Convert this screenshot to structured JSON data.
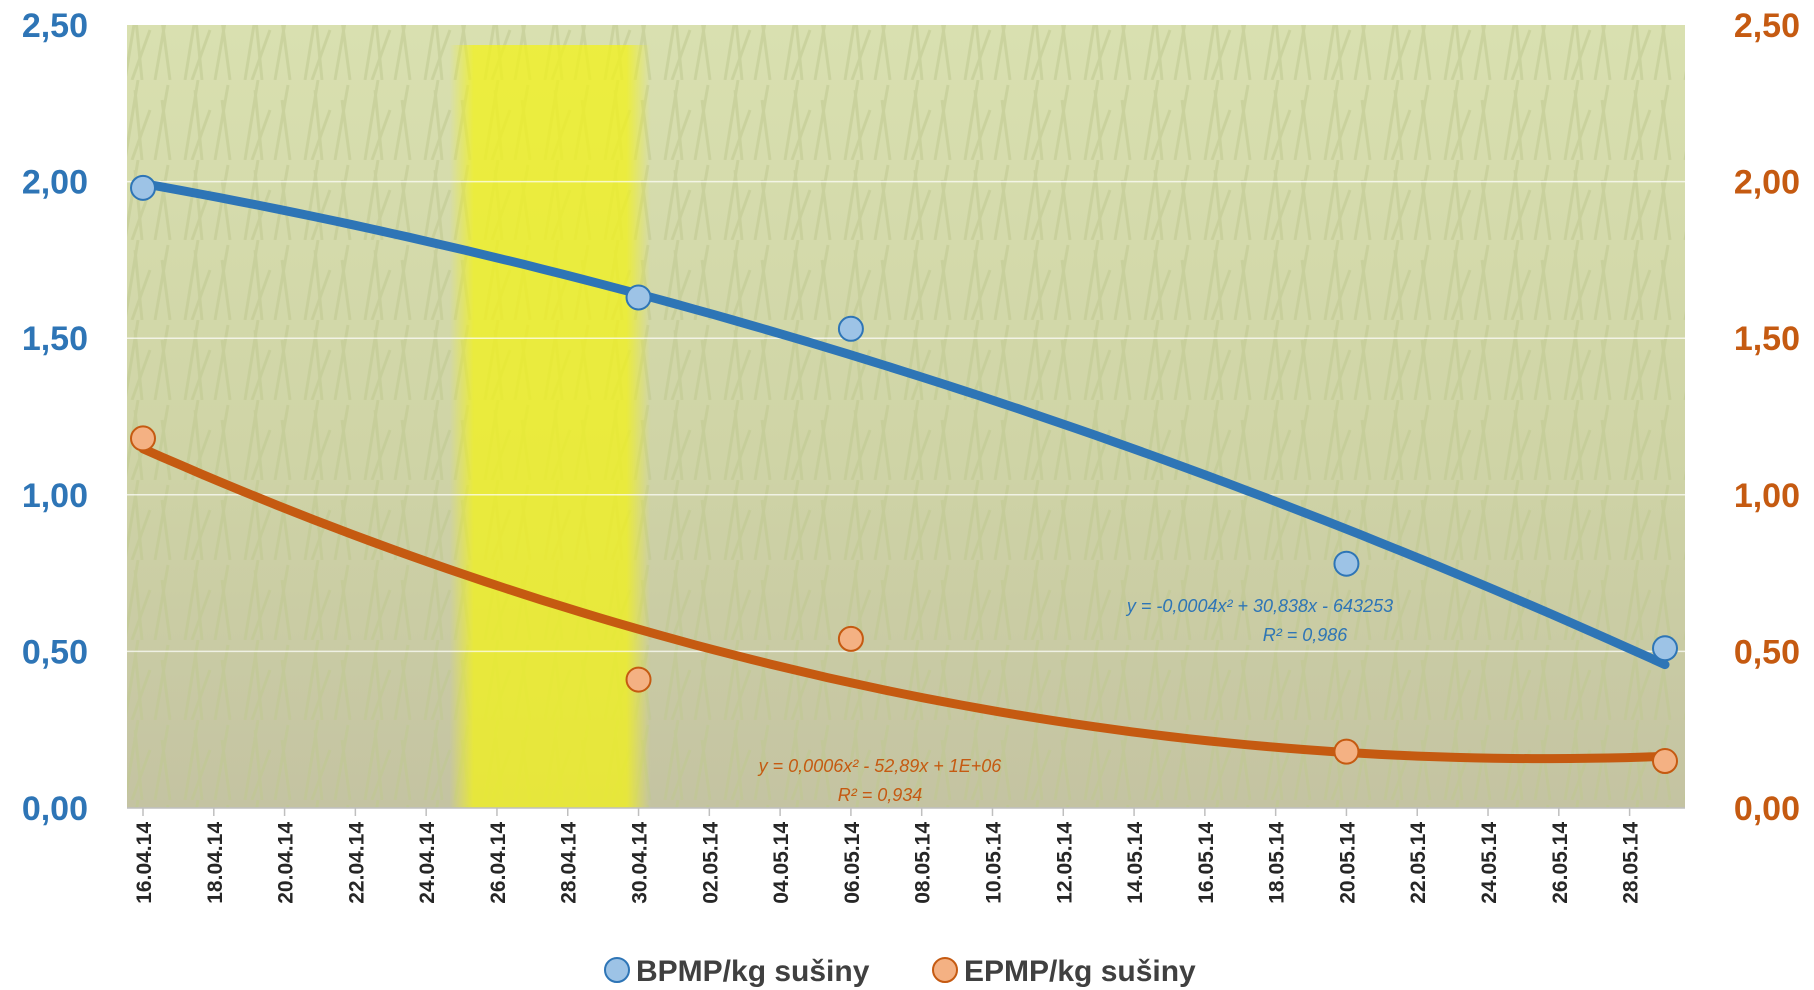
{
  "chart_data": {
    "type": "line",
    "title": "",
    "xlabel": "",
    "ylabel": "",
    "x_ticks": [
      "16.04.14",
      "18.04.14",
      "20.04.14",
      "22.04.14",
      "24.04.14",
      "26.04.14",
      "28.04.14",
      "30.04.14",
      "02.05.14",
      "04.05.14",
      "06.05.14",
      "08.05.14",
      "10.05.14",
      "12.05.14",
      "14.05.14",
      "16.05.14",
      "18.05.14",
      "20.05.14",
      "22.05.14",
      "24.05.14",
      "26.05.14",
      "28.05.14"
    ],
    "x_range": [
      "16.04.14",
      "29.05.14"
    ],
    "y_left_ticks": [
      "0,00",
      "0,50",
      "1,00",
      "1,50",
      "2,00",
      "2,50"
    ],
    "y_right_ticks": [
      "0,00",
      "0,50",
      "1,00",
      "1,50",
      "2,00",
      "2,50"
    ],
    "ylim": [
      0,
      2.5
    ],
    "highlight_band": {
      "from": "25.04.14",
      "to": "30.04.14",
      "color": "#f2f21a"
    },
    "grid": true,
    "legend_position": "bottom",
    "series": [
      {
        "name": "BPMP/kg sušiny",
        "axis": "left",
        "color": "#2e75b6",
        "marker_fill": "#9dc3e6",
        "points": [
          {
            "x": "16.04.14",
            "y": 1.98
          },
          {
            "x": "30.04.14",
            "y": 1.63
          },
          {
            "x": "06.05.14",
            "y": 1.53
          },
          {
            "x": "20.05.14",
            "y": 0.78
          },
          {
            "x": "29.05.14",
            "y": 0.51
          }
        ],
        "trend": {
          "type": "polynomial",
          "order": 2,
          "equation": "y = -0,0004x² + 30,838x - 643253",
          "r2": "R² = 0,986"
        }
      },
      {
        "name": "EPMP/kg sušiny",
        "axis": "right",
        "color": "#c55a11",
        "marker_fill": "#f4b183",
        "points": [
          {
            "x": "16.04.14",
            "y": 1.18
          },
          {
            "x": "30.04.14",
            "y": 0.41
          },
          {
            "x": "06.05.14",
            "y": 0.54
          },
          {
            "x": "20.05.14",
            "y": 0.18
          },
          {
            "x": "29.05.14",
            "y": 0.15
          }
        ],
        "trend": {
          "type": "polynomial",
          "order": 2,
          "equation": "y = 0,0006x² - 52,89x + 1E+06",
          "r2": "R² = 0,934"
        }
      }
    ]
  }
}
